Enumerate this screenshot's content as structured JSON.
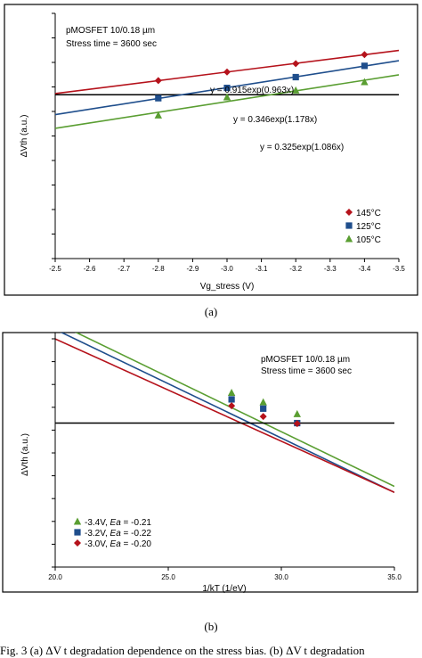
{
  "chart_data": [
    {
      "type": "scatter",
      "title": "pMOSFET 10/0.18 µm",
      "subtitle": "Stress time = 3600 sec",
      "xlabel": "Vg_stress (V)",
      "ylabel": "ΔVth (a.u.)",
      "xlim": [
        -2.5,
        -3.5
      ],
      "x_ticks": [
        "-2.5",
        "-2.6",
        "-2.7",
        "-2.8",
        "-2.9",
        "-3.0",
        "-3.1",
        "-3.2",
        "-3.3",
        "-3.4",
        "-3.5"
      ],
      "ylim": [
        0,
        10
      ],
      "y_scale": "log",
      "grid": false,
      "legend_position": "bottom-right",
      "series": [
        {
          "name": "145°C",
          "color": "#b5121b",
          "marker": "diamond",
          "x": [
            -2.8,
            -3.0,
            -3.2,
            -3.4
          ],
          "y": [
            7.26,
            7.61,
            7.95,
            8.32
          ],
          "fit_label": "y = 0.915exp(0.963x)"
        },
        {
          "name": "125°C",
          "color": "#1f4e8c",
          "marker": "square",
          "x": [
            -2.8,
            -3.0,
            -3.2,
            -3.4
          ],
          "y": [
            6.54,
            6.96,
            7.4,
            7.86
          ],
          "fit_label": "y = 0.346exp(1.178x)"
        },
        {
          "name": "105°C",
          "color": "#5a9e32",
          "marker": "triangle",
          "x": [
            -2.8,
            -3.0,
            -3.2,
            -3.4
          ],
          "y": [
            5.84,
            6.58,
            6.86,
            7.2
          ],
          "fit_label": "y = 0.325exp(1.086x)"
        }
      ],
      "reference_line_y": 6.68
    },
    {
      "type": "scatter",
      "title": "pMOSFET 10/0.18 µm",
      "subtitle": "Stress time = 3600 sec",
      "xlabel": "1/kT (1/eV)",
      "ylabel": "ΔVth (a.u.)",
      "xlim": [
        20.0,
        35.0
      ],
      "x_ticks": [
        "20.0",
        "25.0",
        "30.0",
        "35.0"
      ],
      "ylim": [
        0,
        10
      ],
      "y_scale": "log",
      "grid": false,
      "legend_position": "bottom-left",
      "series": [
        {
          "name": "-3.4V, Ea = -0.21",
          "legend_prefix": "-3.4V, ",
          "legend_italic": "Ea",
          "legend_value": " = -0.21",
          "color": "#5a9e32",
          "marker": "triangle",
          "x": [
            27.8,
            29.2,
            30.7
          ],
          "y": [
            7.35,
            6.95,
            6.45
          ]
        },
        {
          "name": "-3.2V, Ea = -0.22",
          "legend_prefix": "-3.2V, ",
          "legend_italic": "Ea",
          "legend_value": " = -0.22",
          "color": "#1f4e8c",
          "marker": "square",
          "x": [
            27.8,
            29.2,
            30.7
          ],
          "y": [
            7.07,
            6.68,
            6.07
          ]
        },
        {
          "name": "-3.0V, Ea = -0.20",
          "legend_prefix": "-3.0V, ",
          "legend_italic": "Ea",
          "legend_value": " = -0.20",
          "color": "#b5121b",
          "marker": "diamond",
          "x": [
            27.8,
            29.2,
            30.7
          ],
          "y": [
            6.8,
            6.35,
            6.05
          ]
        }
      ],
      "fit_lines": [
        {
          "color": "#5a9e32",
          "x": [
            20.0,
            35.0
          ],
          "y": [
            10.32,
            3.4
          ]
        },
        {
          "color": "#1f4e8c",
          "x": [
            20.0,
            35.0
          ],
          "y": [
            10.02,
            3.15
          ]
        },
        {
          "color": "#b5121b",
          "x": [
            20.0,
            35.0
          ],
          "y": [
            9.62,
            3.15
          ]
        }
      ],
      "reference_line_y": 6.07
    }
  ],
  "labels": {
    "panel_a": "(a)",
    "panel_b": "(b)",
    "caption": "Fig. 3 (a) ΔV t degradation dependence on the stress bias. (b) ΔV t degradation"
  }
}
